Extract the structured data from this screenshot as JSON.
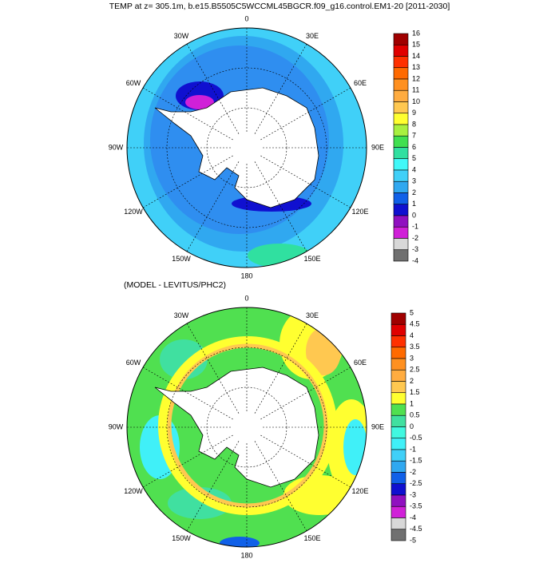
{
  "panels": [
    {
      "title": "TEMP at z= 305.1m, b.e15.B5505C5WCCML45BGCR.f09_g16.control.EM1-20 [2011-2030]",
      "lon_labels": [
        "0",
        "30E",
        "60E",
        "90E",
        "120E",
        "150E",
        "180",
        "150W",
        "120W",
        "90W",
        "60W",
        "30W"
      ],
      "colorbar": {
        "labels": [
          16,
          15,
          14,
          13,
          12,
          11,
          10,
          9,
          8,
          7,
          6,
          5,
          4,
          3,
          2,
          1,
          0,
          -1,
          -2,
          -3,
          -4
        ],
        "colors": [
          "#a00000",
          "#e00000",
          "#ff3000",
          "#ff6a00",
          "#ff9020",
          "#ffac40",
          "#ffc850",
          "#ffff30",
          "#a8f040",
          "#40e050",
          "#30e0a0",
          "#40f8f8",
          "#40d0f8",
          "#30a8f0",
          "#1060e8",
          "#1010d0",
          "#9010c0",
          "#d020d8",
          "#d8d8d8",
          "#707070"
        ]
      }
    },
    {
      "title": "(MODEL - LEVITUS/PHC2)",
      "lon_labels": [
        "0",
        "30E",
        "60E",
        "90E",
        "120E",
        "150E",
        "180",
        "150W",
        "120W",
        "90W",
        "60W",
        "30W"
      ],
      "colorbar": {
        "labels": [
          5,
          4.5,
          4,
          3.5,
          3,
          2.5,
          2,
          1.5,
          1,
          0.5,
          0,
          -0.5,
          -1,
          -1.5,
          -2,
          -2.5,
          -3,
          -3.5,
          -4,
          -4.5,
          -5
        ],
        "colors": [
          "#a00000",
          "#e00000",
          "#ff3000",
          "#ff6a00",
          "#ff9020",
          "#ffac40",
          "#ffc850",
          "#ffff30",
          "#50e050",
          "#40e0a0",
          "#40f8e0",
          "#40f0f8",
          "#40d0f8",
          "#30a8f0",
          "#1060e8",
          "#1010d0",
          "#9010c0",
          "#d020d8",
          "#d8d8d8",
          "#707070"
        ]
      }
    }
  ]
}
